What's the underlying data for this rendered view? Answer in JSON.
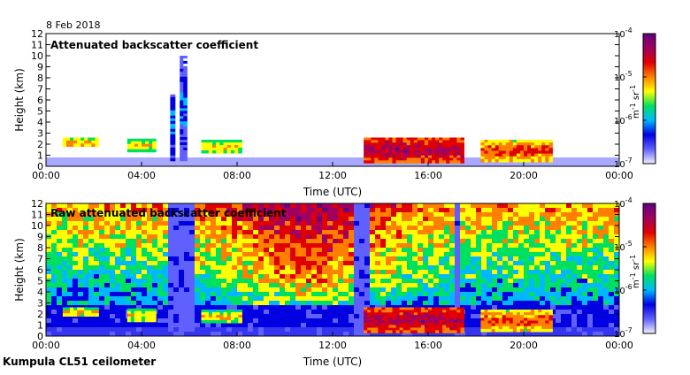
{
  "date": "8 Feb 2018",
  "instrument": "Kumpula CL51 ceilometer",
  "colorbar": {
    "scale": "log",
    "range": [
      1e-07,
      0.0001
    ],
    "ticks": [
      {
        "mant": "10",
        "exp": "-4",
        "value": 0.0001
      },
      {
        "mant": "10",
        "exp": "-5",
        "value": 1e-05
      },
      {
        "mant": "10",
        "exp": "-6",
        "value": 1e-06
      },
      {
        "mant": "10",
        "exp": "-7",
        "value": 1e-07
      }
    ],
    "unit_m": "m",
    "unit_m_exp": "-1",
    "unit_sr": "sr",
    "unit_sr_exp": "-1",
    "colors": [
      "#f0f0ff",
      "#6060ff",
      "#0000e0",
      "#00b8ff",
      "#00e060",
      "#ffff00",
      "#ff8000",
      "#e00000",
      "#a00060",
      "#600080"
    ]
  },
  "chart_data": [
    {
      "type": "heatmap",
      "title": "Attenuated backscatter coefficient",
      "xlabel": "Time (UTC)",
      "ylabel": "Height (km)",
      "xlim": [
        0,
        24
      ],
      "ylim": [
        0,
        12
      ],
      "xticks": [
        "00:00",
        "04:00",
        "08:00",
        "12:00",
        "16:00",
        "20:00",
        "00:00"
      ],
      "yticks": [
        "0",
        "1",
        "2",
        "3",
        "4",
        "5",
        "6",
        "7",
        "8",
        "9",
        "10",
        "11",
        "12"
      ],
      "features": [
        {
          "t0": 0.7,
          "t1": 2.2,
          "h0": 1.8,
          "h1": 2.6,
          "level": 0.65
        },
        {
          "t0": 3.4,
          "t1": 4.6,
          "h0": 1.3,
          "h1": 2.5,
          "level": 0.6
        },
        {
          "t0": 6.5,
          "t1": 8.2,
          "h0": 1.2,
          "h1": 2.4,
          "level": 0.6
        },
        {
          "t0": 5.2,
          "t1": 5.4,
          "h0": 0.5,
          "h1": 6.5,
          "level": 0.35
        },
        {
          "t0": 5.6,
          "t1": 5.9,
          "h0": 0.5,
          "h1": 10.0,
          "level": 0.3
        },
        {
          "t0": 13.3,
          "t1": 17.5,
          "h0": 0.3,
          "h1": 2.6,
          "level": 0.85
        },
        {
          "t0": 18.2,
          "t1": 21.2,
          "h0": 0.4,
          "h1": 2.4,
          "level": 0.72
        }
      ]
    },
    {
      "type": "heatmap",
      "title": "Raw attenuated backscatter coefficient",
      "xlabel": "Time (UTC)",
      "ylabel": "Height (km)",
      "xlim": [
        0,
        24
      ],
      "ylim": [
        0,
        12
      ],
      "xticks": [
        "00:00",
        "04:00",
        "08:00",
        "12:00",
        "16:00",
        "20:00",
        "00:00"
      ],
      "yticks": [
        "0",
        "1",
        "2",
        "3",
        "4",
        "5",
        "6",
        "7",
        "8",
        "9",
        "10",
        "11",
        "12"
      ],
      "features": [
        {
          "t0": 0.7,
          "t1": 2.2,
          "h0": 1.8,
          "h1": 2.6,
          "level": 0.65
        },
        {
          "t0": 3.4,
          "t1": 4.6,
          "h0": 1.3,
          "h1": 2.5,
          "level": 0.6
        },
        {
          "t0": 6.5,
          "t1": 8.2,
          "h0": 1.2,
          "h1": 2.4,
          "level": 0.6
        },
        {
          "t0": 13.3,
          "t1": 17.5,
          "h0": 0.3,
          "h1": 2.6,
          "level": 0.85
        },
        {
          "t0": 18.2,
          "t1": 21.2,
          "h0": 0.4,
          "h1": 2.4,
          "level": 0.72
        }
      ]
    }
  ]
}
